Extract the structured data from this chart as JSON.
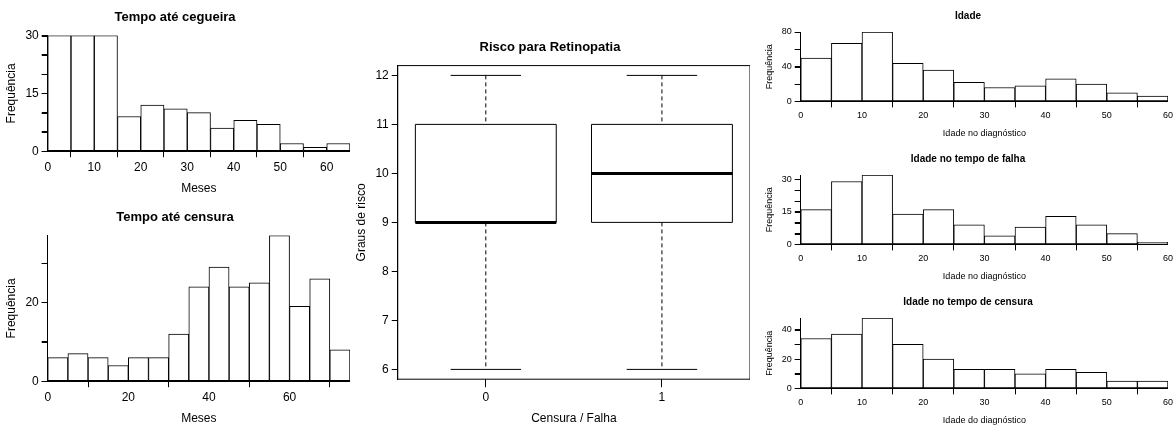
{
  "chart_data": [
    {
      "type": "histogram",
      "title": "Tempo até cegueira",
      "xlabel": "Meses",
      "ylabel": "Frequência",
      "color": "#ffffff",
      "bins": [
        0,
        5,
        10,
        15,
        20,
        25,
        30,
        35,
        40,
        45,
        50,
        55,
        60,
        65
      ],
      "values": [
        30,
        30,
        30,
        9,
        12,
        11,
        10,
        6,
        8,
        7,
        2,
        1,
        2
      ],
      "xlim": [
        0,
        65
      ],
      "xticks": [
        0,
        10,
        20,
        30,
        40,
        50,
        60
      ],
      "ylim": [
        0,
        30
      ],
      "yticks": [
        0,
        {
          "value": 5,
          "label": null
        },
        {
          "value": 10,
          "label": null
        },
        15,
        {
          "value": 20,
          "label": null
        },
        {
          "value": 25,
          "label": null
        },
        30
      ]
    },
    {
      "type": "histogram",
      "title": "Tempo até censura",
      "xlabel": "Meses",
      "ylabel": "Frequência",
      "color": "#ffffff",
      "bins": [
        0,
        5,
        10,
        15,
        20,
        25,
        30,
        35,
        40,
        45,
        50,
        55,
        60,
        65,
        70,
        75
      ],
      "values": [
        6,
        7,
        6,
        4,
        6,
        6,
        12,
        24,
        29,
        24,
        25,
        37,
        19,
        26,
        8
      ],
      "xlim": [
        0,
        75
      ],
      "xticks": [
        0,
        20,
        40,
        60
      ],
      "ylim": [
        0,
        37
      ],
      "yticks": [
        0,
        {
          "value": 10,
          "label": null
        },
        20,
        {
          "value": 30,
          "label": null
        }
      ]
    },
    {
      "type": "box",
      "title": "Risco para Retinopatia",
      "xlabel": "Censura / Falha",
      "ylabel": "Graus de risco",
      "color": "#ffffff",
      "categories": [
        "0",
        "1"
      ],
      "boxes": [
        {
          "low": 6,
          "q1": 9,
          "median": 9,
          "q3": 11,
          "high": 12
        },
        {
          "low": 6,
          "q1": 9,
          "median": 10,
          "q3": 11,
          "high": 12
        }
      ],
      "ylim": [
        5.8,
        12.2
      ],
      "yticks": [
        6,
        7,
        8,
        9,
        10,
        11,
        12
      ]
    },
    {
      "type": "histogram",
      "title": "Idade",
      "xlabel": "Idade no diagnóstico",
      "ylabel": "Frequência",
      "color": "#ffffff",
      "bins": [
        0,
        5,
        10,
        15,
        20,
        25,
        30,
        35,
        40,
        45,
        50,
        55,
        60
      ],
      "values": [
        50,
        67,
        80,
        44,
        36,
        22,
        16,
        18,
        26,
        20,
        10,
        6
      ],
      "xlim": [
        0,
        60
      ],
      "xticks": [
        0,
        10,
        20,
        30,
        40,
        50,
        60
      ],
      "ylim": [
        0,
        80
      ],
      "yticks": [
        0,
        {
          "value": 20,
          "label": null
        },
        40,
        {
          "value": 60,
          "label": null
        },
        80
      ]
    },
    {
      "type": "histogram",
      "title": "Idade no tempo de falha",
      "xlabel": "Idade no diagnóstico",
      "ylabel": "Frequência",
      "color": "#ffffff",
      "bins": [
        0,
        5,
        10,
        15,
        20,
        25,
        30,
        35,
        40,
        45,
        50,
        55,
        60
      ],
      "values": [
        16,
        29,
        32,
        14,
        16,
        9,
        4,
        8,
        13,
        9,
        5,
        1
      ],
      "xlim": [
        0,
        60
      ],
      "xticks": [
        0,
        10,
        20,
        30,
        40,
        50,
        60
      ],
      "ylim": [
        0,
        32
      ],
      "yticks": [
        0,
        {
          "value": 5,
          "label": null
        },
        {
          "value": 10,
          "label": null
        },
        15,
        {
          "value": 20,
          "label": null
        },
        {
          "value": 25,
          "label": null
        },
        30
      ]
    },
    {
      "type": "histogram",
      "title": "Idade no tempo de censura",
      "xlabel": "Idade do diagnóstico",
      "ylabel": "Frequência",
      "color": "#ffffff",
      "bins": [
        0,
        5,
        10,
        15,
        20,
        25,
        30,
        35,
        40,
        45,
        50,
        55,
        60
      ],
      "values": [
        34,
        37,
        48,
        30,
        20,
        13,
        13,
        10,
        13,
        11,
        5,
        5
      ],
      "xlim": [
        0,
        60
      ],
      "xticks": [
        0,
        10,
        20,
        30,
        40,
        50,
        60
      ],
      "ylim": [
        0,
        48
      ],
      "yticks": [
        0,
        {
          "value": 10,
          "label": null
        },
        20,
        {
          "value": 30,
          "label": null
        },
        40
      ]
    }
  ]
}
